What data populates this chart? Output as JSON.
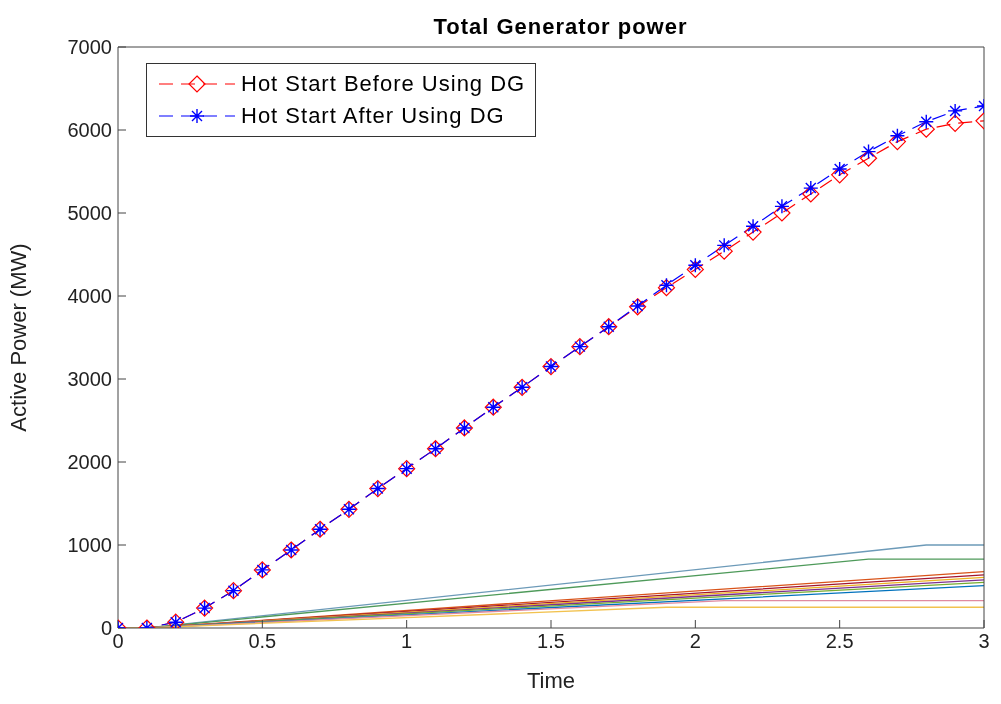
{
  "chart_data": {
    "type": "line",
    "title": "Total Generator power",
    "xlabel": "Time",
    "ylabel": "Active Power (MW)",
    "xlim": [
      0,
      3
    ],
    "xticks": [
      0,
      0.5,
      1,
      1.5,
      2,
      2.5,
      3
    ],
    "ylim": [
      0,
      7000
    ],
    "yticks": [
      0,
      1000,
      2000,
      3000,
      4000,
      5000,
      6000,
      7000
    ],
    "legend": "top left",
    "series": [
      {
        "name": "Hot Start Before Using DG",
        "color": "#ff0000",
        "marker": "diamond",
        "line_style": "dashed",
        "x": [
          0,
          0.1,
          0.2,
          0.3,
          0.4,
          0.5,
          0.6,
          0.7,
          0.8,
          0.9,
          1,
          1.1,
          1.2,
          1.3,
          1.4,
          1.5,
          1.6,
          1.7,
          1.8,
          1.9,
          2,
          2.1,
          2.2,
          2.3,
          2.4,
          2.5,
          2.6,
          2.7,
          2.8,
          2.9,
          3
        ],
        "values": [
          0,
          0,
          70,
          240,
          450,
          700,
          940,
          1190,
          1430,
          1680,
          1920,
          2160,
          2410,
          2660,
          2900,
          3150,
          3390,
          3630,
          3870,
          4100,
          4320,
          4540,
          4770,
          5000,
          5230,
          5460,
          5660,
          5860,
          6010,
          6080,
          6110
        ]
      },
      {
        "name": "Hot Start After Using DG",
        "color": "#0000ff",
        "marker": "cross",
        "line_style": "dashed",
        "x": [
          0,
          0.1,
          0.2,
          0.3,
          0.4,
          0.5,
          0.6,
          0.7,
          0.8,
          0.9,
          1,
          1.1,
          1.2,
          1.3,
          1.4,
          1.5,
          1.6,
          1.7,
          1.8,
          1.9,
          2,
          2.1,
          2.2,
          2.3,
          2.4,
          2.5,
          2.6,
          2.7,
          2.8,
          2.9,
          3
        ],
        "values": [
          0,
          0,
          70,
          240,
          450,
          700,
          940,
          1190,
          1430,
          1680,
          1920,
          2160,
          2410,
          2660,
          2900,
          3150,
          3390,
          3630,
          3880,
          4130,
          4370,
          4610,
          4840,
          5080,
          5300,
          5530,
          5740,
          5930,
          6100,
          6230,
          6290
        ]
      },
      {
        "color": "#6c9ab8",
        "marker": "none",
        "line_style": "solid",
        "x": [
          0,
          0.1,
          2.8,
          3
        ],
        "values": [
          0,
          0,
          1000,
          1000
        ]
      },
      {
        "color": "#4e9a5a",
        "marker": "none",
        "line_style": "solid",
        "x": [
          0,
          0.1,
          2.6,
          3
        ],
        "values": [
          0,
          0,
          830,
          830
        ]
      },
      {
        "color": "#d95319",
        "marker": "none",
        "line_style": "solid",
        "x": [
          0,
          0.1,
          3
        ],
        "values": [
          0,
          0,
          680
        ]
      },
      {
        "color": "#a2142f",
        "marker": "none",
        "line_style": "solid",
        "x": [
          0,
          0.1,
          3
        ],
        "values": [
          0,
          0,
          640
        ]
      },
      {
        "color": "#edb120",
        "marker": "none",
        "line_style": "solid",
        "x": [
          0,
          0.1,
          3
        ],
        "values": [
          0,
          0,
          610
        ]
      },
      {
        "color": "#7e2f8e",
        "marker": "none",
        "line_style": "solid",
        "x": [
          0,
          0.1,
          3
        ],
        "values": [
          0,
          0,
          580
        ]
      },
      {
        "color": "#77ac30",
        "marker": "none",
        "line_style": "solid",
        "x": [
          0,
          0.1,
          3
        ],
        "values": [
          0,
          0,
          550
        ]
      },
      {
        "color": "#0072bd",
        "marker": "none",
        "line_style": "solid",
        "x": [
          0,
          0.1,
          3
        ],
        "values": [
          0,
          0,
          510
        ]
      },
      {
        "color": "#e08aa0",
        "marker": "none",
        "line_style": "solid",
        "x": [
          0,
          0.1,
          2.1,
          3
        ],
        "values": [
          0,
          0,
          330,
          330
        ]
      },
      {
        "color": "#f2c24f",
        "marker": "none",
        "line_style": "solid",
        "x": [
          0,
          0.1,
          1.9,
          3
        ],
        "values": [
          0,
          0,
          250,
          250
        ]
      }
    ]
  }
}
